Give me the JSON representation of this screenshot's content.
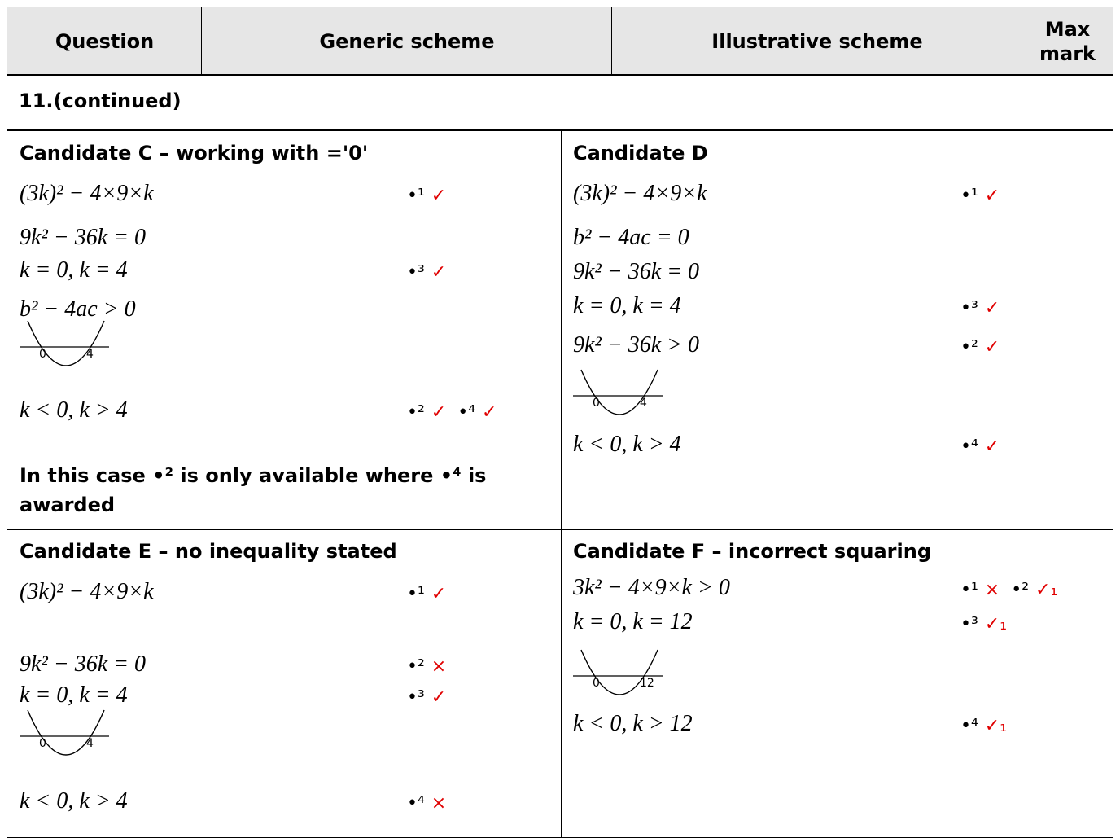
{
  "header": {
    "columns": [
      "Question",
      "Generic scheme",
      "Illustrative scheme",
      "Max mark"
    ]
  },
  "section": "11.(continued)",
  "panels": [
    {
      "title": "Candidate C – working with ='0'",
      "lines": [
        {
          "expr": "(3k)² − 4×9×k",
          "marks": [
            {
              "point": "•¹",
              "result": "✓"
            }
          ]
        },
        {
          "expr": "9k² − 36k = 0"
        },
        {
          "expr": "k = 0, k = 4",
          "marks": [
            {
              "point": "•³",
              "result": "✓"
            }
          ]
        },
        {
          "expr": "b² − 4ac > 0"
        },
        {
          "sketch": [
            "0",
            "4"
          ]
        },
        {
          "expr": "k < 0, k > 4",
          "marks": [
            {
              "point": "•²",
              "result": "✓"
            },
            {
              "point": "•⁴",
              "result": "✓"
            }
          ]
        }
      ],
      "note": "In this case •² is only available where •⁴ is awarded"
    },
    {
      "title": "Candidate D",
      "lines": [
        {
          "expr": "(3k)² − 4×9×k",
          "marks": [
            {
              "point": "•¹",
              "result": "✓"
            }
          ]
        },
        {
          "expr": "b² − 4ac = 0"
        },
        {
          "expr": "9k² − 36k = 0"
        },
        {
          "expr": "k = 0, k = 4",
          "marks": [
            {
              "point": "•³",
              "result": "✓"
            }
          ]
        },
        {
          "expr": "9k² − 36k > 0",
          "marks": [
            {
              "point": "•²",
              "result": "✓"
            }
          ]
        },
        {
          "sketch": [
            "0",
            "4"
          ]
        },
        {
          "expr": "k < 0, k > 4",
          "marks": [
            {
              "point": "•⁴",
              "result": "✓"
            }
          ]
        }
      ]
    },
    {
      "title": "Candidate E – no inequality stated",
      "lines": [
        {
          "expr": "(3k)² − 4×9×k",
          "marks": [
            {
              "point": "•¹",
              "result": "✓"
            }
          ]
        },
        {
          "expr": "9k² − 36k = 0",
          "marks": [
            {
              "point": "•²",
              "result": "×"
            }
          ]
        },
        {
          "expr": "k = 0, k = 4",
          "marks": [
            {
              "point": "•³",
              "result": "✓"
            }
          ]
        },
        {
          "sketch": [
            "0",
            "4"
          ]
        },
        {
          "expr": "k < 0, k > 4",
          "marks": [
            {
              "point": "•⁴",
              "result": "×"
            }
          ]
        }
      ]
    },
    {
      "title": "Candidate F – incorrect squaring",
      "lines": [
        {
          "expr": "3k² − 4×9×k > 0",
          "marks": [
            {
              "point": "•¹",
              "result": "×"
            },
            {
              "point": "•²",
              "result": "✓₁"
            }
          ]
        },
        {
          "expr": "k = 0, k = 12",
          "marks": [
            {
              "point": "•³",
              "result": "✓₁"
            }
          ]
        },
        {
          "sketch": [
            "0",
            "12"
          ]
        },
        {
          "expr": "k < 0, k > 12",
          "marks": [
            {
              "point": "•⁴",
              "result": "✓₁"
            }
          ]
        }
      ]
    }
  ]
}
